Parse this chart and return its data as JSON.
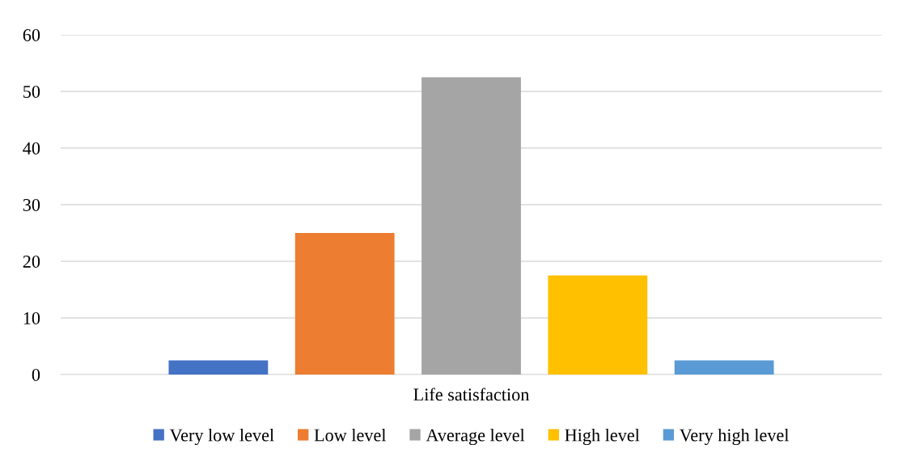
{
  "chart_data": {
    "type": "bar",
    "categories": [
      "Life satisfaction"
    ],
    "series": [
      {
        "name": "Very low level",
        "color": "#4472c4",
        "values": [
          2.5
        ]
      },
      {
        "name": "Low level",
        "color": "#ed7d31",
        "values": [
          25
        ]
      },
      {
        "name": "Average level",
        "color": "#a5a5a5",
        "values": [
          52.5
        ]
      },
      {
        "name": "High level",
        "color": "#ffc000",
        "values": [
          17.5
        ]
      },
      {
        "name": "Very high level",
        "color": "#5b9bd5",
        "values": [
          2.5
        ]
      }
    ],
    "ylim": [
      0,
      60
    ],
    "yticks": [
      0,
      10,
      20,
      30,
      40,
      50,
      60
    ],
    "grid": "y",
    "legend": "bottom"
  }
}
